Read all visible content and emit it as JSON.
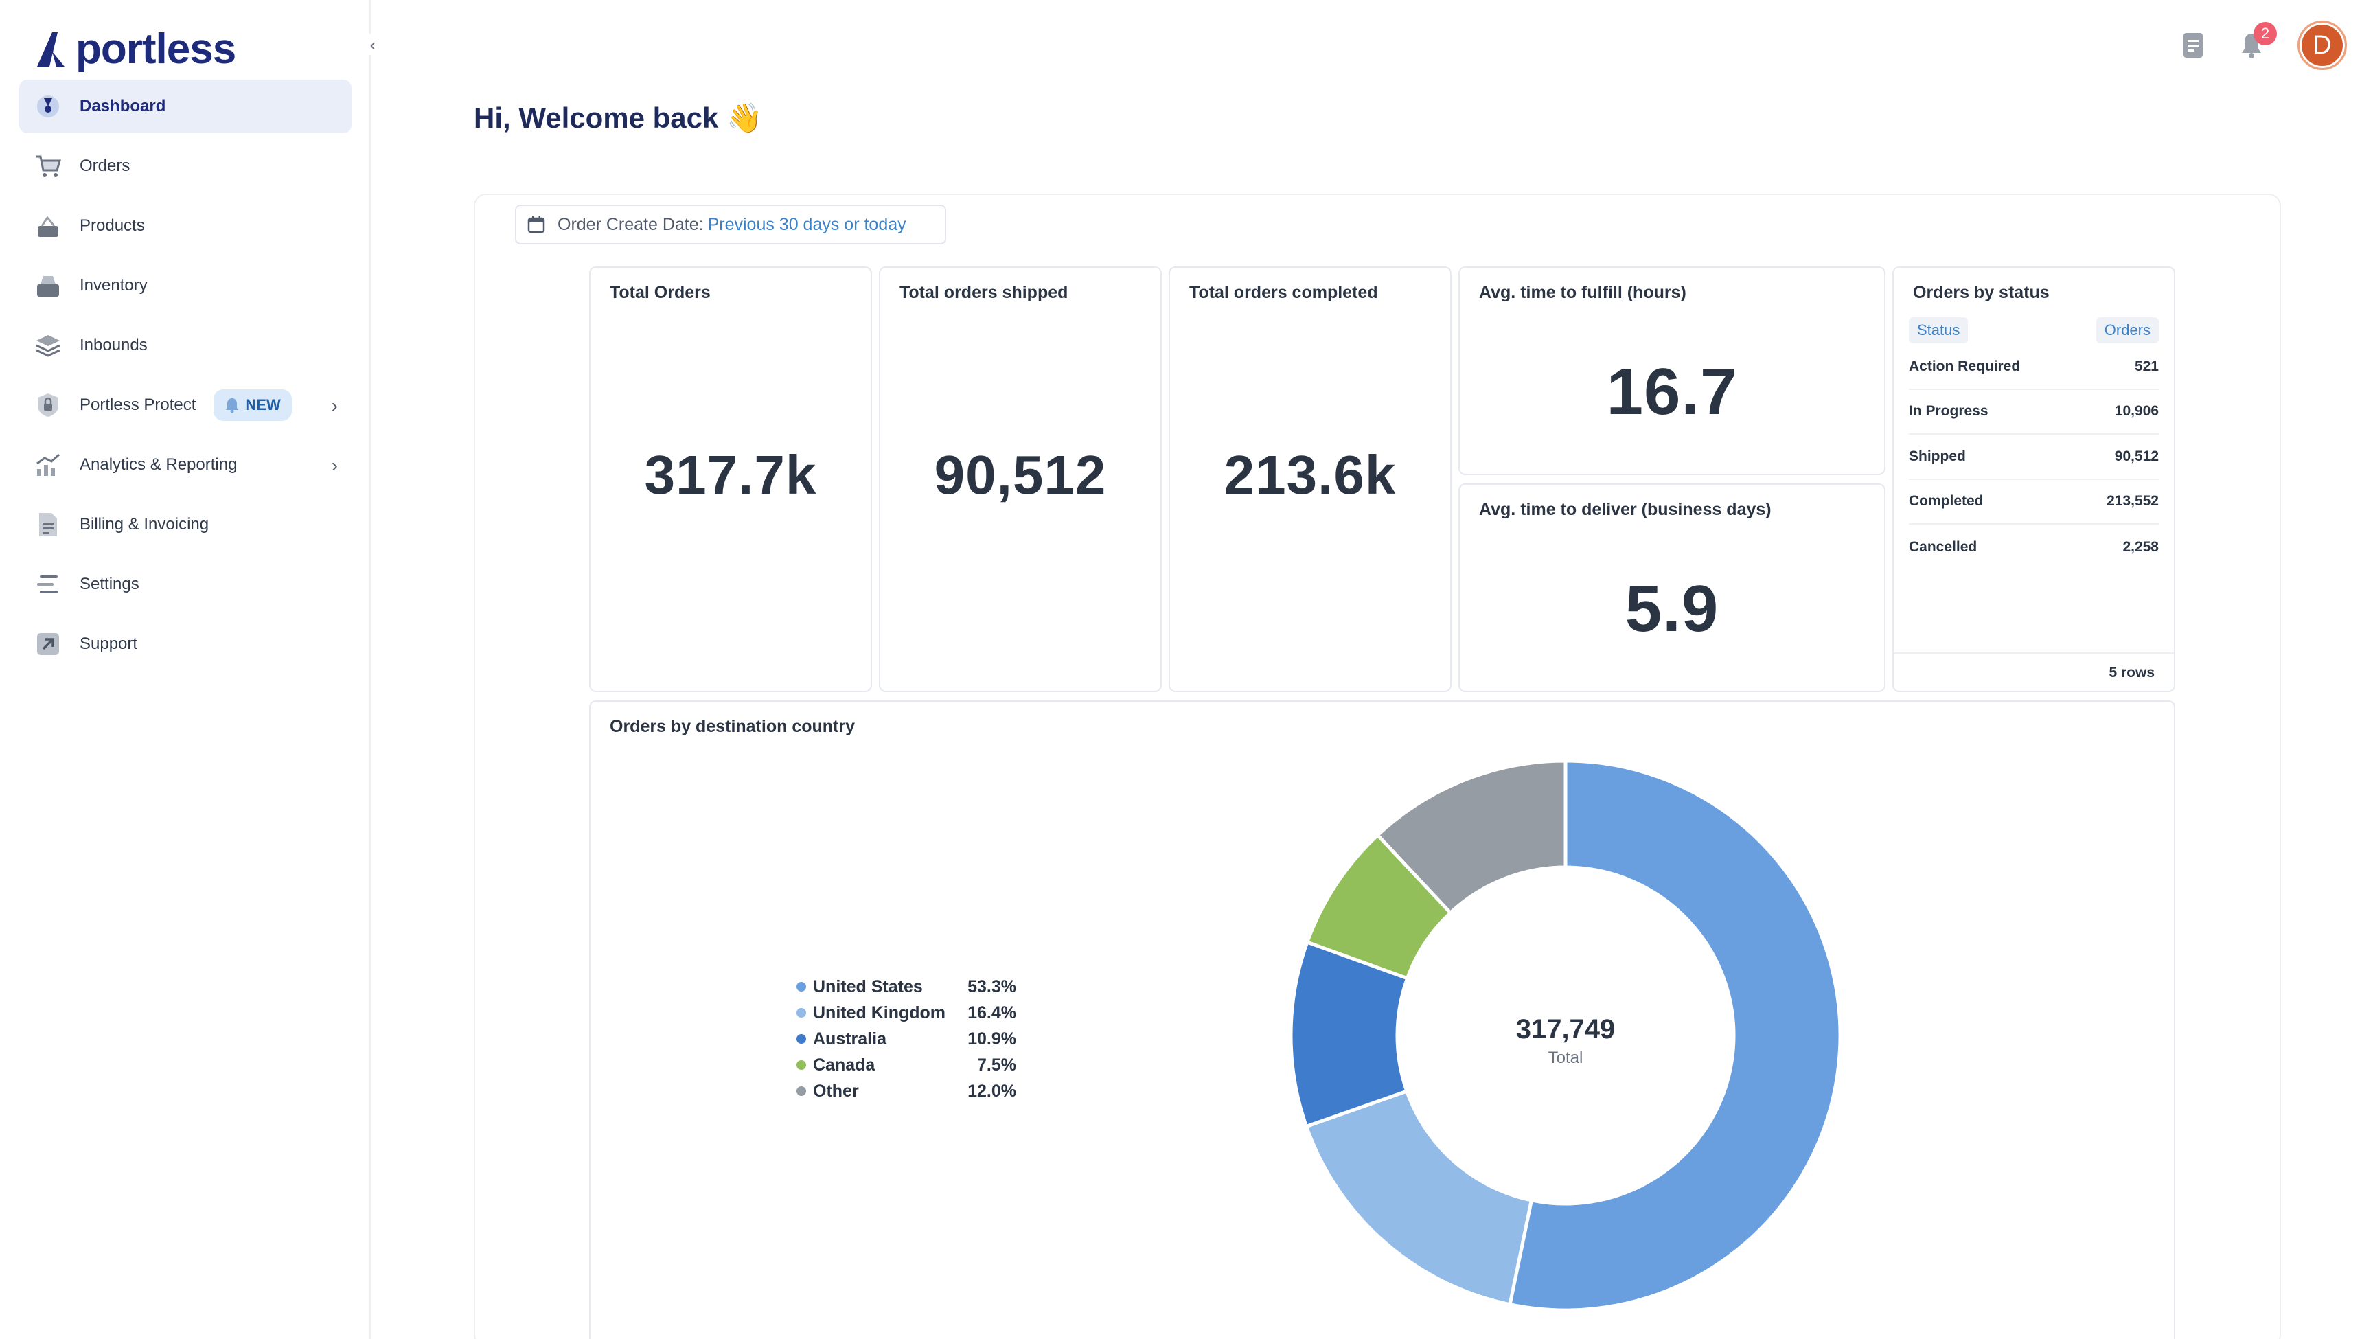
{
  "brand": {
    "name": "portless"
  },
  "sidebar": {
    "items": [
      {
        "label": "Dashboard",
        "icon": "gauge-icon",
        "active": true
      },
      {
        "label": "Orders",
        "icon": "cart-icon"
      },
      {
        "label": "Products",
        "icon": "products-icon"
      },
      {
        "label": "Inventory",
        "icon": "inventory-icon"
      },
      {
        "label": "Inbounds",
        "icon": "layers-icon"
      },
      {
        "label": "Portless Protect",
        "icon": "lock-icon",
        "badge": "NEW",
        "has_chevron": true
      },
      {
        "label": "Analytics & Reporting",
        "icon": "chart-icon",
        "has_chevron": true
      },
      {
        "label": "Billing & Invoicing",
        "icon": "invoice-icon"
      },
      {
        "label": "Settings",
        "icon": "settings-icon"
      },
      {
        "label": "Support",
        "icon": "support-icon"
      }
    ]
  },
  "topbar": {
    "notification_count": "2",
    "avatar_initial": "D"
  },
  "welcome": "Hi, Welcome back 👋",
  "filter": {
    "label": "Order Create Date:",
    "value": "Previous 30 days or today"
  },
  "cards": {
    "total_orders": {
      "title": "Total Orders",
      "value": "317.7k"
    },
    "total_shipped": {
      "title": "Total orders shipped",
      "value": "90,512"
    },
    "total_completed": {
      "title": "Total orders completed",
      "value": "213.6k"
    },
    "avg_fulfill": {
      "title": "Avg. time to fulfill (hours)",
      "value": "16.7"
    },
    "avg_deliver": {
      "title": "Avg. time to deliver (business days)",
      "value": "5.9"
    }
  },
  "status_table": {
    "title": "Orders by status",
    "columns": [
      "Status",
      "Orders"
    ],
    "rows": [
      {
        "status": "Action Required",
        "orders": "521"
      },
      {
        "status": "In Progress",
        "orders": "10,906"
      },
      {
        "status": "Shipped",
        "orders": "90,512"
      },
      {
        "status": "Completed",
        "orders": "213,552"
      },
      {
        "status": "Cancelled",
        "orders": "2,258"
      }
    ],
    "footer": "5 rows"
  },
  "chart_data": {
    "type": "pie",
    "title": "Orders by destination country",
    "total_value": "317,749",
    "total_label": "Total",
    "legend_position": "left",
    "categories": [
      "United States",
      "United Kingdom",
      "Australia",
      "Canada",
      "Other"
    ],
    "values": [
      53.3,
      16.4,
      10.9,
      7.5,
      12.0
    ],
    "labels": [
      "53.3%",
      "16.4%",
      "10.9%",
      "7.5%",
      "12.0%"
    ],
    "colors": [
      "#6a9fdf",
      "#93bbe8",
      "#3f7ccc",
      "#93bf5a",
      "#969ca3"
    ]
  }
}
